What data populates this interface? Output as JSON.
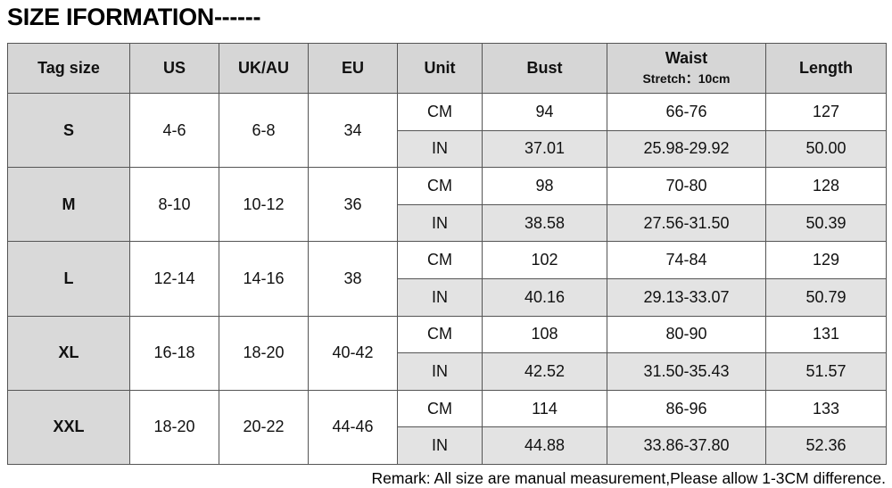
{
  "header": {
    "title": "SIZE IFORMATION------"
  },
  "table": {
    "columns": [
      "Tag size",
      "US",
      "UK/AU",
      "EU",
      "Unit",
      "Bust",
      "Waist",
      "Length"
    ],
    "waist_note": "Stretch：10cm",
    "rows": [
      {
        "tag": "S",
        "us": "4-6",
        "uk": "6-8",
        "eu": "34",
        "cm": [
          "CM",
          "94",
          "66-76",
          "127"
        ],
        "in": [
          "IN",
          "37.01",
          "25.98-29.92",
          "50.00"
        ]
      },
      {
        "tag": "M",
        "us": "8-10",
        "uk": "10-12",
        "eu": "36",
        "cm": [
          "CM",
          "98",
          "70-80",
          "128"
        ],
        "in": [
          "IN",
          "38.58",
          "27.56-31.50",
          "50.39"
        ]
      },
      {
        "tag": "L",
        "us": "12-14",
        "uk": "14-16",
        "eu": "38",
        "cm": [
          "CM",
          "102",
          "74-84",
          "129"
        ],
        "in": [
          "IN",
          "40.16",
          "29.13-33.07",
          "50.79"
        ]
      },
      {
        "tag": "XL",
        "us": "16-18",
        "uk": "18-20",
        "eu": "40-42",
        "cm": [
          "CM",
          "108",
          "80-90",
          "131"
        ],
        "in": [
          "IN",
          "42.52",
          "31.50-35.43",
          "51.57"
        ]
      },
      {
        "tag": "XXL",
        "us": "18-20",
        "uk": "20-22",
        "eu": "44-46",
        "cm": [
          "CM",
          "114",
          "86-96",
          "133"
        ],
        "in": [
          "IN",
          "44.88",
          "33.86-37.80",
          "52.36"
        ]
      }
    ]
  },
  "remark": "Remark: All size are manual measurement,Please allow 1-3CM difference."
}
